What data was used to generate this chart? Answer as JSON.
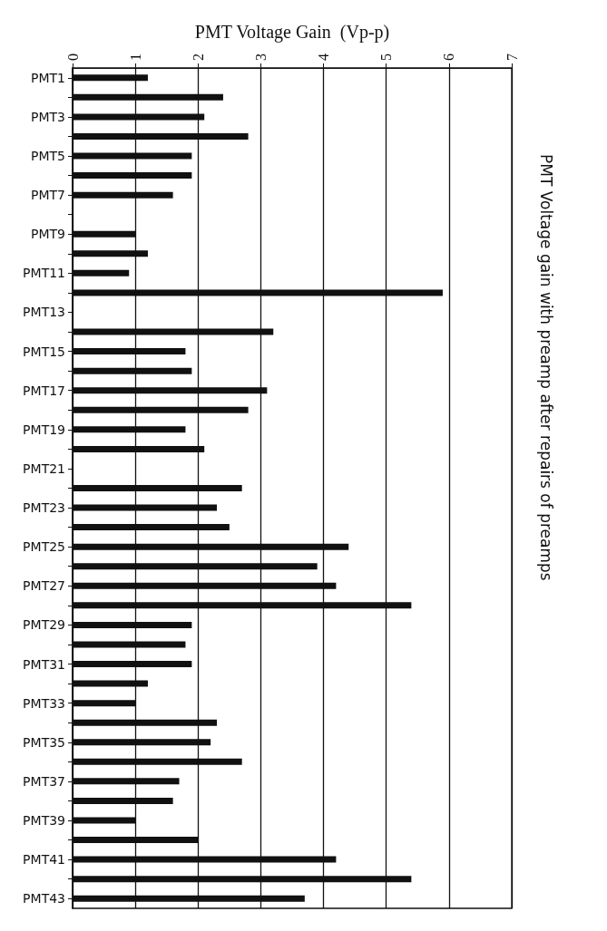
{
  "chart_data": {
    "type": "bar",
    "orientation": "horizontal",
    "title": "PMT Voltage gain with preamp after repairs of preamps",
    "xlabel": "PMT Voltage Gain  (Vp-p)",
    "categories": [
      "PMT1",
      null,
      "PMT3",
      null,
      "PMT5",
      null,
      "PMT7",
      null,
      "PMT9",
      null,
      "PMT11",
      null,
      "PMT13",
      null,
      "PMT15",
      null,
      "PMT17",
      null,
      "PMT19",
      null,
      "PMT21",
      null,
      "PMT23",
      null,
      "PMT25",
      null,
      "PMT27",
      null,
      "PMT29",
      null,
      "PMT31",
      null,
      "PMT33",
      null,
      "PMT35",
      null,
      "PMT37",
      null,
      "PMT39",
      null,
      "PMT41",
      null,
      "PMT43"
    ],
    "values": [
      1.2,
      2.4,
      2.1,
      2.8,
      1.9,
      1.9,
      1.6,
      null,
      1.0,
      1.2,
      0.9,
      5.9,
      null,
      3.2,
      1.8,
      1.9,
      3.1,
      2.8,
      1.8,
      2.1,
      null,
      2.7,
      2.3,
      2.5,
      4.4,
      3.9,
      4.2,
      5.4,
      1.9,
      1.8,
      1.9,
      1.2,
      1.0,
      2.3,
      2.2,
      2.7,
      1.7,
      1.6,
      1.0,
      2.0,
      4.2,
      5.4,
      3.7
    ],
    "color": "#111111",
    "xlim": [
      0,
      7
    ],
    "xticks": [
      0,
      1,
      2,
      3,
      4,
      5,
      6,
      7
    ],
    "grid": "x"
  }
}
